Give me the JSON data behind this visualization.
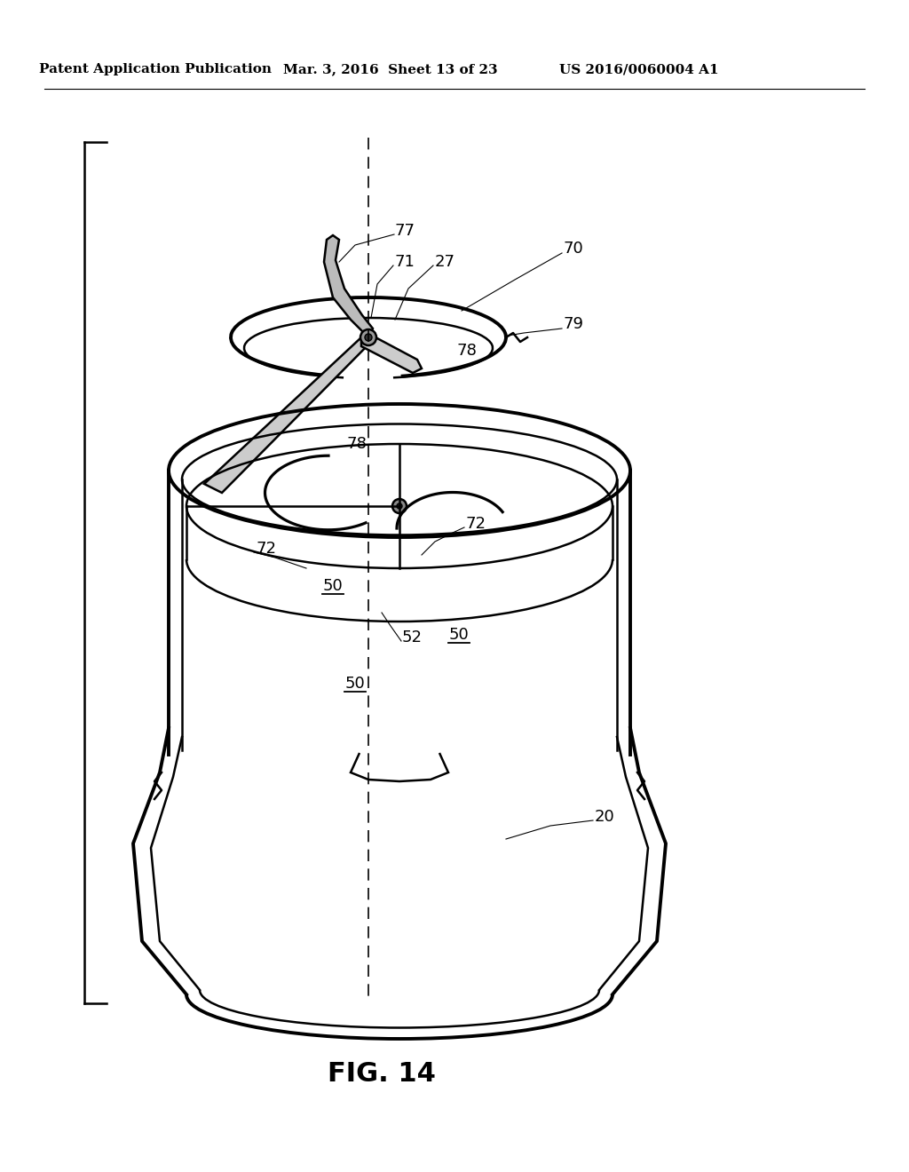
{
  "bg_color": "#ffffff",
  "header_left": "Patent Application Publication",
  "header_mid": "Mar. 3, 2016  Sheet 13 of 23",
  "header_right": "US 2016/0060004 A1",
  "fig_label": "FIG. 14",
  "line_color": "#000000",
  "line_width": 1.8
}
